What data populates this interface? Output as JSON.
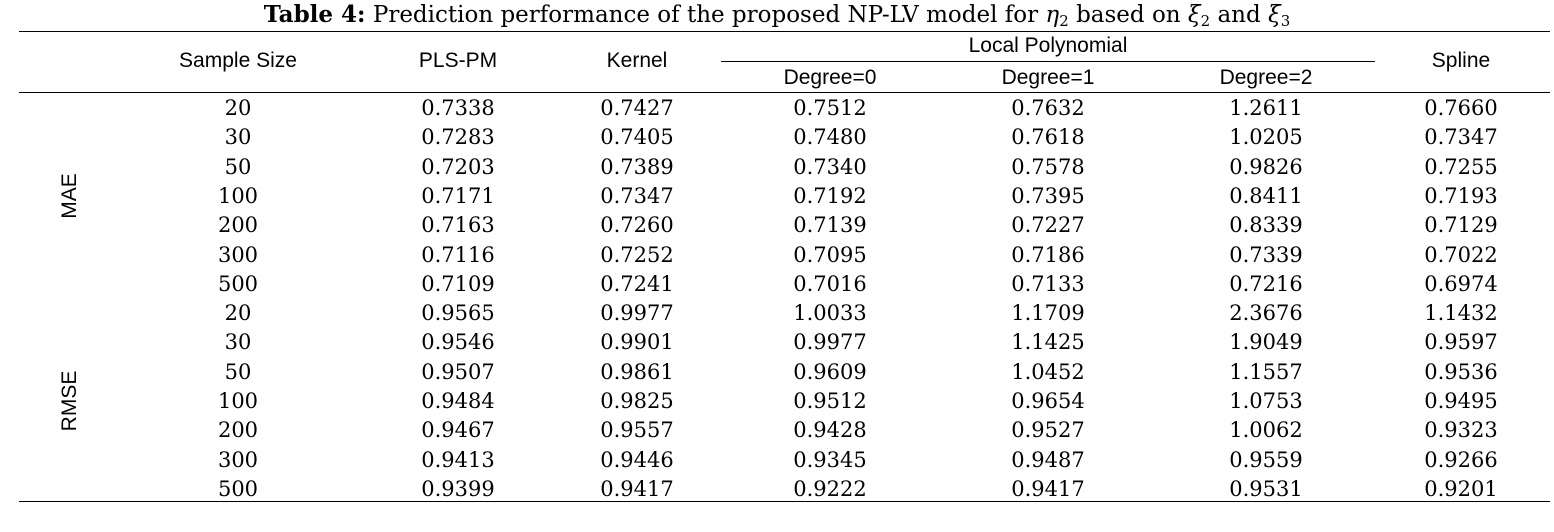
{
  "caption": {
    "label": "Table 4:",
    "text_before": "Prediction performance of the proposed NP-LV model for",
    "eta": "η",
    "eta_sub": "2",
    "text_middle": "based on",
    "xi_a": "ξ",
    "xi_a_sub": "2",
    "and": "and",
    "xi_b": "ξ",
    "xi_b_sub": "3"
  },
  "headers": {
    "sample_size": "Sample Size",
    "pls_pm": "PLS-PM",
    "kernel": "Kernel",
    "local_polynomial": "Local Polynomial",
    "degree0": "Degree=0",
    "degree1": "Degree=1",
    "degree2": "Degree=2",
    "spline": "Spline"
  },
  "groups": [
    {
      "label": "MAE",
      "rows": [
        [
          "20",
          "0.7338",
          "0.7427",
          "0.7512",
          "0.7632",
          "1.2611",
          "0.7660"
        ],
        [
          "30",
          "0.7283",
          "0.7405",
          "0.7480",
          "0.7618",
          "1.0205",
          "0.7347"
        ],
        [
          "50",
          "0.7203",
          "0.7389",
          "0.7340",
          "0.7578",
          "0.9826",
          "0.7255"
        ],
        [
          "100",
          "0.7171",
          "0.7347",
          "0.7192",
          "0.7395",
          "0.8411",
          "0.7193"
        ],
        [
          "200",
          "0.7163",
          "0.7260",
          "0.7139",
          "0.7227",
          "0.8339",
          "0.7129"
        ],
        [
          "300",
          "0.7116",
          "0.7252",
          "0.7095",
          "0.7186",
          "0.7339",
          "0.7022"
        ],
        [
          "500",
          "0.7109",
          "0.7241",
          "0.7016",
          "0.7133",
          "0.7216",
          "0.6974"
        ]
      ]
    },
    {
      "label": "RMSE",
      "rows": [
        [
          "20",
          "0.9565",
          "0.9977",
          "1.0033",
          "1.1709",
          "2.3676",
          "1.1432"
        ],
        [
          "30",
          "0.9546",
          "0.9901",
          "0.9977",
          "1.1425",
          "1.9049",
          "0.9597"
        ],
        [
          "50",
          "0.9507",
          "0.9861",
          "0.9609",
          "1.0452",
          "1.1557",
          "0.9536"
        ],
        [
          "100",
          "0.9484",
          "0.9825",
          "0.9512",
          "0.9654",
          "1.0753",
          "0.9495"
        ],
        [
          "200",
          "0.9467",
          "0.9557",
          "0.9428",
          "0.9527",
          "1.0062",
          "0.9323"
        ],
        [
          "300",
          "0.9413",
          "0.9446",
          "0.9345",
          "0.9487",
          "0.9559",
          "0.9266"
        ],
        [
          "500",
          "0.9399",
          "0.9417",
          "0.9222",
          "0.9417",
          "0.9531",
          "0.9201"
        ]
      ]
    }
  ]
}
